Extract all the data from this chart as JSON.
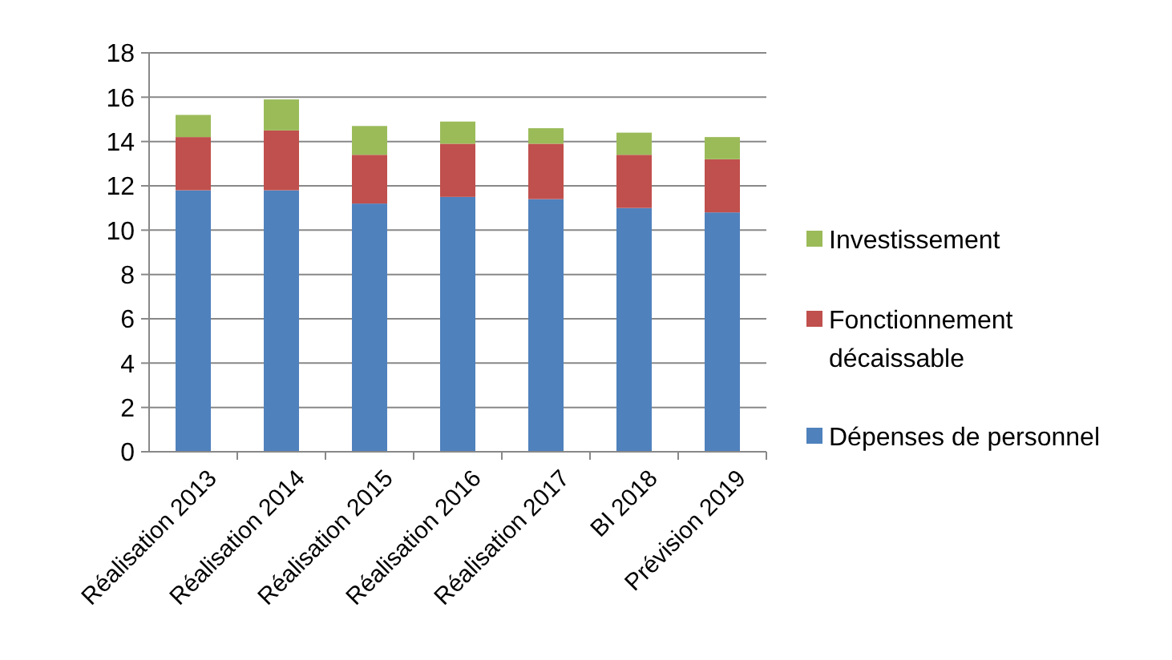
{
  "chart_data": {
    "type": "bar",
    "stacked": true,
    "categories": [
      "Réalisation 2013",
      "Réalisation 2014",
      "Réalisation 2015",
      "Réalisation 2016",
      "Réalisation 2017",
      "BI 2018",
      "Prévision 2019"
    ],
    "series": [
      {
        "name": "Dépenses de personnel",
        "color": "#4f81bd",
        "values": [
          11.8,
          11.8,
          11.2,
          11.5,
          11.4,
          11.0,
          10.8
        ]
      },
      {
        "name": "Fonctionnement décaissable",
        "color": "#c0504d",
        "values": [
          2.4,
          2.7,
          2.2,
          2.4,
          2.5,
          2.4,
          2.4
        ]
      },
      {
        "name": "Investissement",
        "color": "#9bbb59",
        "values": [
          1.0,
          1.4,
          1.3,
          1.0,
          0.7,
          1.0,
          1.0
        ]
      }
    ],
    "ylim": [
      0,
      18
    ],
    "yticks": [
      0,
      2,
      4,
      6,
      8,
      10,
      12,
      14,
      16,
      18
    ],
    "grid": "y",
    "legend": "right"
  }
}
